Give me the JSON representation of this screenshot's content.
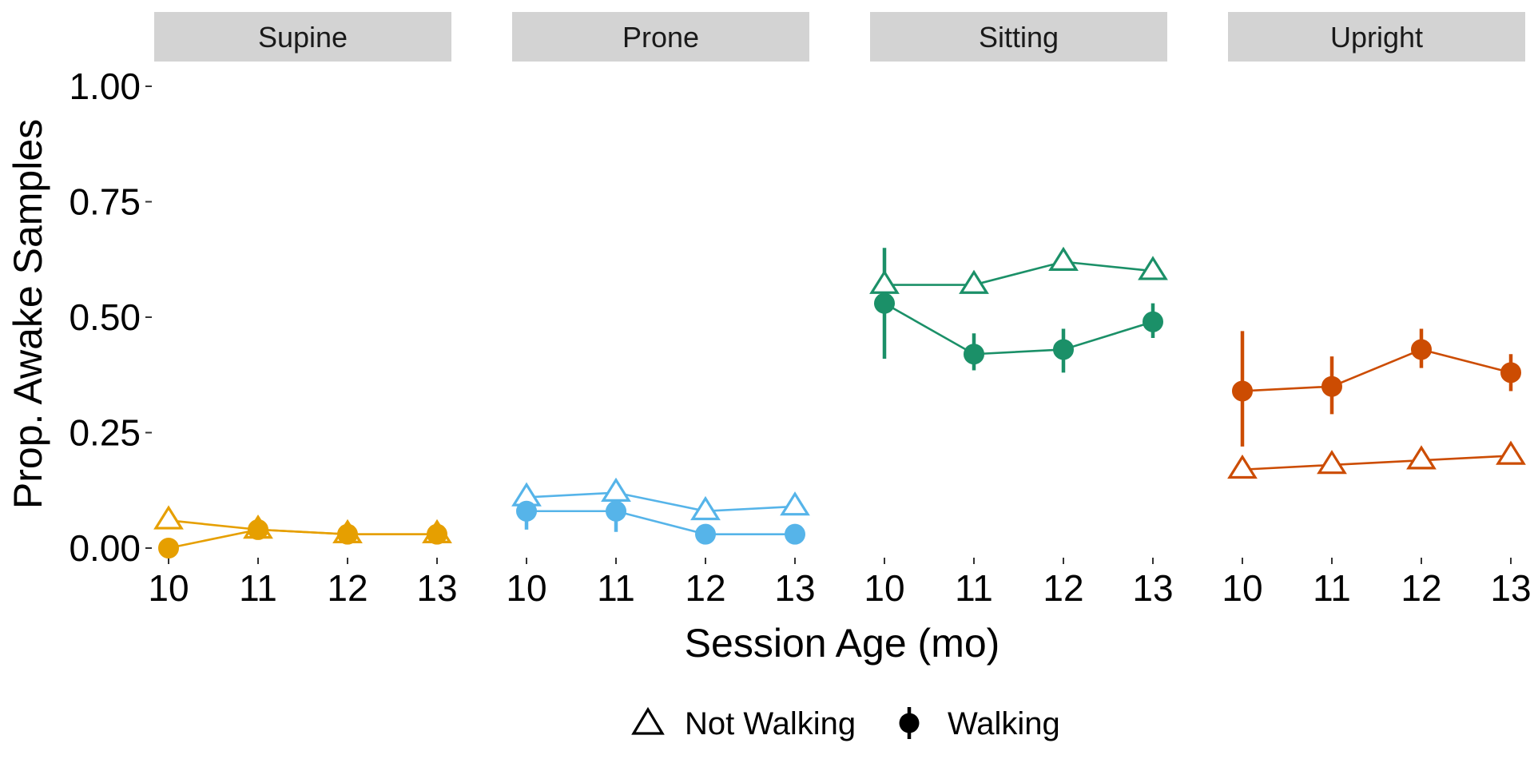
{
  "chart_data": {
    "type": "line",
    "xlabel": "Session Age (mo)",
    "ylabel": "Prop. Awake Samples",
    "ylim": [
      0,
      1
    ],
    "yticks": [
      "0.00",
      "0.25",
      "0.50",
      "0.75",
      "1.00"
    ],
    "xticks": [
      "10",
      "11",
      "12",
      "13"
    ],
    "x": [
      10,
      11,
      12,
      13
    ],
    "grid": false,
    "legend": {
      "position": "bottom",
      "entries": [
        {
          "label": "Not Walking",
          "shape": "open-triangle"
        },
        {
          "label": "Walking",
          "shape": "filled-circle"
        }
      ]
    },
    "panels": [
      {
        "title": "Supine",
        "color": "#E69F00",
        "series": [
          {
            "name": "Not Walking",
            "values": [
              0.06,
              0.04,
              0.03,
              0.03
            ],
            "error": [
              null,
              null,
              null,
              null
            ]
          },
          {
            "name": "Walking",
            "values": [
              0.0,
              0.04,
              0.03,
              0.03
            ],
            "error": [
              null,
              null,
              null,
              null
            ]
          }
        ]
      },
      {
        "title": "Prone",
        "color": "#56B4E9",
        "series": [
          {
            "name": "Not Walking",
            "values": [
              0.11,
              0.12,
              0.08,
              0.09
            ],
            "error": [
              null,
              null,
              null,
              null
            ]
          },
          {
            "name": "Walking",
            "values": [
              0.08,
              0.08,
              0.03,
              0.03
            ],
            "error": [
              [
                0.04,
                0.12
              ],
              [
                0.035,
                0.125
              ],
              null,
              null
            ]
          }
        ]
      },
      {
        "title": "Sitting",
        "color": "#1B9068",
        "series": [
          {
            "name": "Not Walking",
            "values": [
              0.57,
              0.57,
              0.62,
              0.6
            ],
            "error": [
              null,
              null,
              null,
              null
            ]
          },
          {
            "name": "Walking",
            "values": [
              0.53,
              0.42,
              0.43,
              0.49
            ],
            "error": [
              [
                0.41,
                0.65
              ],
              [
                0.385,
                0.465
              ],
              [
                0.38,
                0.475
              ],
              [
                0.455,
                0.53
              ]
            ]
          }
        ]
      },
      {
        "title": "Upright",
        "color": "#CC4C02",
        "series": [
          {
            "name": "Not Walking",
            "values": [
              0.17,
              0.18,
              0.19,
              0.2
            ],
            "error": [
              null,
              null,
              null,
              null
            ]
          },
          {
            "name": "Walking",
            "values": [
              0.34,
              0.35,
              0.43,
              0.38
            ],
            "error": [
              [
                0.22,
                0.47
              ],
              [
                0.29,
                0.415
              ],
              [
                0.39,
                0.475
              ],
              [
                0.34,
                0.42
              ]
            ]
          }
        ]
      }
    ]
  }
}
